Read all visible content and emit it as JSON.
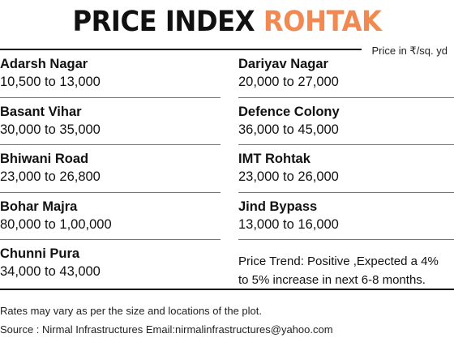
{
  "title": {
    "part1": "PRICE INDEX",
    "part2": "ROHTAK",
    "accent_color": "#f08a52"
  },
  "unit_note": "Price in ₹/sq. yd",
  "left_column": [
    {
      "name": "Adarsh Nagar",
      "range": "10,500 to 13,000"
    },
    {
      "name": "Basant Vihar",
      "range": "30,000 to 35,000"
    },
    {
      "name": "Bhiwani Road",
      "range": "23,000 to 26,800"
    },
    {
      "name": "Bohar Majra",
      "range": "80,000 to 1,00,000"
    },
    {
      "name": "Chunni Pura",
      "range": "34,000 to 43,000"
    }
  ],
  "right_column": [
    {
      "name": "Dariyav Nagar",
      "range": "20,000 to 27,000"
    },
    {
      "name": "Defence Colony",
      "range": "36,000 to 45,000"
    },
    {
      "name": "IMT Rohtak",
      "range": "23,000 to 26,000"
    },
    {
      "name": "Jind Bypass",
      "range": "13,000 to 16,000"
    }
  ],
  "trend": "Price Trend: Positive ,Expected a 4% to 5% increase in next 6-8 months.",
  "footer": {
    "disclaimer": "Rates may vary as per the size and locations of the plot.",
    "source": "Source : Nirmal Infrastructures Email:nirmalinfrastructures@yahoo.com"
  }
}
